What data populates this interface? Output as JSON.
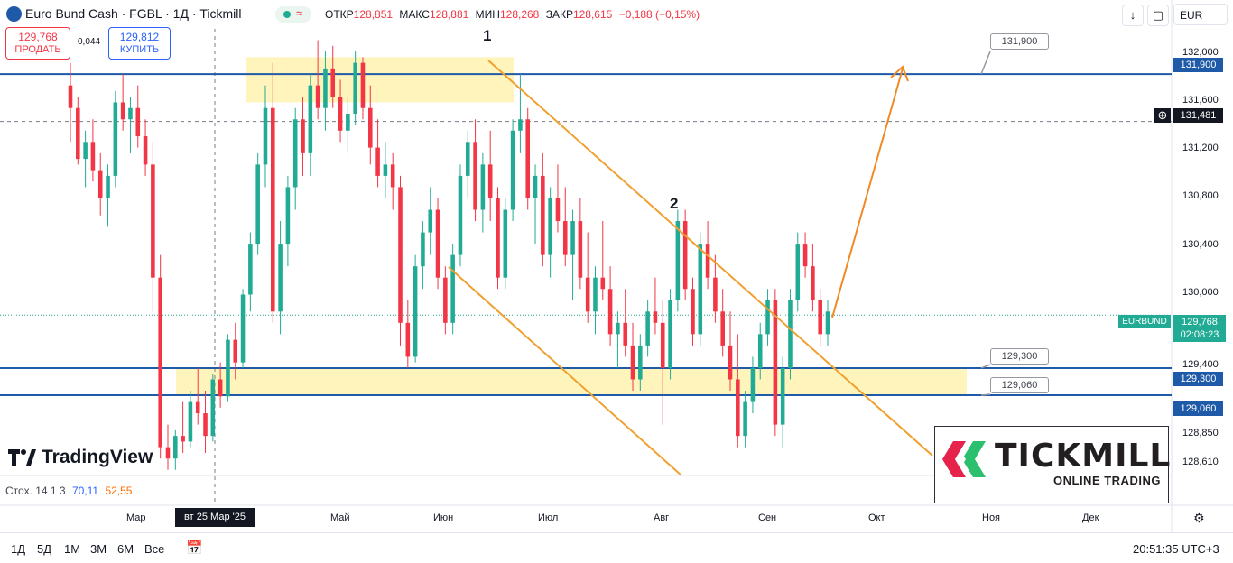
{
  "header": {
    "title": "Euro Bund Cash · FGBL · 1Д · Tickmill",
    "open_label": "ОТКР",
    "open_value": "128,851",
    "high_label": "МАКС",
    "high_value": "128,881",
    "low_label": "МИН",
    "low_value": "128,268",
    "close_label": "ЗАКР",
    "close_value": "128,615",
    "change": "−0,188 (−0,15%)",
    "live_glyph": "≈",
    "currency": "EUR",
    "colors": {
      "up": "#22ab94",
      "down": "#f23645",
      "accent": "#2962ff"
    }
  },
  "trade": {
    "sell_price": "129,768",
    "sell_label": "ПРОДАТЬ",
    "buy_price": "129,812",
    "buy_label": "КУПИТЬ",
    "spread": "0,044"
  },
  "toolbar_icons": [
    "arrow-down-icon",
    "screenshot-icon",
    "fullscreen-icon"
  ],
  "chart_data": {
    "type": "candlestick",
    "symbol": "EURBUND",
    "interval": "1Д",
    "ylim": [
      128.35,
      132.3
    ],
    "y_ticks": [
      "132,000",
      "131,600",
      "131,200",
      "130,800",
      "130,400",
      "130,000",
      "129,400",
      "128,850",
      "128,610"
    ],
    "x_ticks": [
      "Мар",
      "Май",
      "Июн",
      "Июл",
      "Авг",
      "Сен",
      "Окт",
      "Ноя",
      "Дек"
    ],
    "crosshair_date": "вт 25 Мар '25",
    "price_tags": {
      "r1": "131,900",
      "crosshair": "131,481",
      "current_symbol": "EURBUND",
      "current_price": "129,768",
      "countdown": "02:08:23",
      "s1": "129,300",
      "s2": "129,060"
    },
    "levels": [
      131.9,
      129.3,
      129.06
    ],
    "crosshair_price": 131.481,
    "current_price": 129.768,
    "callouts": [
      "131,900",
      "129,300",
      "129,060"
    ],
    "wave_labels": [
      "1",
      "2"
    ],
    "zones": [
      {
        "name": "resistance",
        "from": 131.65,
        "to": 132.05
      },
      {
        "name": "support",
        "from": 129.06,
        "to": 129.3
      }
    ],
    "candles": [
      [
        131.8,
        132.0,
        131.3,
        131.6
      ],
      [
        131.6,
        131.7,
        131.1,
        131.15
      ],
      [
        131.15,
        131.4,
        130.9,
        131.3
      ],
      [
        131.3,
        131.5,
        130.95,
        131.05
      ],
      [
        131.05,
        131.2,
        130.65,
        130.8
      ],
      [
        130.8,
        131.1,
        130.55,
        131.0
      ],
      [
        131.0,
        131.75,
        130.9,
        131.65
      ],
      [
        131.65,
        131.9,
        131.4,
        131.5
      ],
      [
        131.5,
        131.7,
        131.2,
        131.6
      ],
      [
        131.6,
        131.8,
        131.25,
        131.35
      ],
      [
        131.35,
        131.5,
        131.0,
        131.1
      ],
      [
        131.1,
        131.3,
        129.8,
        130.1
      ],
      [
        130.1,
        130.3,
        128.5,
        128.6
      ],
      [
        128.6,
        128.8,
        128.4,
        128.5
      ],
      [
        128.5,
        128.75,
        128.4,
        128.7
      ],
      [
        128.7,
        129.0,
        128.55,
        128.65
      ],
      [
        128.65,
        129.1,
        128.6,
        129.0
      ],
      [
        129.0,
        129.3,
        128.8,
        128.9
      ],
      [
        128.9,
        129.1,
        128.55,
        128.7
      ],
      [
        128.7,
        129.25,
        128.65,
        129.2
      ],
      [
        129.2,
        129.35,
        128.95,
        129.05
      ],
      [
        129.05,
        129.6,
        129.0,
        129.55
      ],
      [
        129.55,
        129.7,
        129.2,
        129.35
      ],
      [
        129.35,
        130.0,
        129.3,
        129.95
      ],
      [
        129.95,
        130.5,
        129.8,
        130.4
      ],
      [
        130.4,
        131.2,
        130.3,
        131.1
      ],
      [
        131.1,
        131.8,
        130.9,
        131.6
      ],
      [
        131.6,
        132.0,
        129.7,
        129.8
      ],
      [
        129.8,
        130.6,
        129.6,
        130.4
      ],
      [
        130.4,
        131.0,
        130.2,
        130.9
      ],
      [
        130.9,
        131.6,
        130.7,
        131.5
      ],
      [
        131.5,
        131.7,
        131.0,
        131.2
      ],
      [
        131.2,
        131.9,
        131.0,
        131.8
      ],
      [
        131.8,
        132.2,
        131.5,
        131.6
      ],
      [
        131.6,
        132.1,
        131.4,
        131.95
      ],
      [
        131.95,
        132.15,
        131.6,
        131.7
      ],
      [
        131.7,
        131.85,
        131.3,
        131.4
      ],
      [
        131.4,
        131.7,
        131.2,
        131.55
      ],
      [
        131.55,
        132.1,
        131.45,
        132.0
      ],
      [
        132.0,
        132.05,
        131.5,
        131.6
      ],
      [
        131.6,
        131.8,
        131.1,
        131.25
      ],
      [
        131.25,
        131.5,
        130.9,
        131.0
      ],
      [
        131.0,
        131.3,
        130.8,
        131.1
      ],
      [
        131.1,
        131.2,
        130.7,
        130.9
      ],
      [
        130.9,
        131.0,
        129.5,
        129.7
      ],
      [
        129.7,
        129.9,
        129.3,
        129.4
      ],
      [
        129.4,
        130.3,
        129.35,
        130.2
      ],
      [
        130.2,
        130.6,
        130.0,
        130.5
      ],
      [
        130.5,
        130.9,
        130.3,
        130.7
      ],
      [
        130.7,
        130.8,
        130.0,
        130.1
      ],
      [
        130.1,
        130.2,
        129.6,
        129.7
      ],
      [
        129.7,
        130.4,
        129.6,
        130.3
      ],
      [
        130.3,
        131.1,
        130.2,
        131.0
      ],
      [
        131.0,
        131.4,
        130.8,
        131.3
      ],
      [
        131.3,
        131.5,
        130.6,
        130.7
      ],
      [
        130.7,
        131.2,
        130.5,
        131.1
      ],
      [
        131.1,
        131.4,
        130.6,
        130.8
      ],
      [
        130.8,
        130.9,
        130.0,
        130.1
      ],
      [
        130.1,
        130.8,
        130.0,
        130.7
      ],
      [
        130.7,
        131.5,
        130.6,
        131.4
      ],
      [
        131.4,
        131.9,
        131.2,
        131.5
      ],
      [
        131.5,
        131.6,
        130.7,
        130.8
      ],
      [
        130.8,
        131.1,
        130.4,
        131.0
      ],
      [
        131.0,
        131.2,
        130.2,
        130.3
      ],
      [
        130.3,
        130.9,
        130.1,
        130.8
      ],
      [
        130.8,
        131.1,
        130.5,
        130.6
      ],
      [
        130.6,
        130.9,
        130.2,
        130.3
      ],
      [
        130.3,
        130.7,
        129.9,
        130.6
      ],
      [
        130.6,
        130.8,
        130.0,
        130.1
      ],
      [
        130.1,
        130.5,
        129.7,
        129.8
      ],
      [
        129.8,
        130.2,
        129.6,
        130.1
      ],
      [
        130.1,
        130.6,
        129.9,
        130.0
      ],
      [
        130.0,
        130.2,
        129.5,
        129.6
      ],
      [
        129.6,
        129.8,
        129.3,
        129.7
      ],
      [
        129.7,
        130.0,
        129.4,
        129.5
      ],
      [
        129.5,
        129.7,
        129.1,
        129.2
      ],
      [
        129.2,
        129.6,
        129.1,
        129.5
      ],
      [
        129.5,
        129.9,
        129.4,
        129.8
      ],
      [
        129.8,
        130.1,
        129.6,
        129.7
      ],
      [
        129.7,
        129.9,
        128.8,
        129.3
      ],
      [
        129.3,
        130.0,
        129.2,
        129.9
      ],
      [
        129.9,
        130.7,
        129.8,
        130.6
      ],
      [
        130.6,
        130.7,
        129.9,
        130.0
      ],
      [
        130.0,
        130.1,
        129.5,
        129.6
      ],
      [
        129.6,
        130.5,
        129.5,
        130.4
      ],
      [
        130.4,
        130.6,
        130.0,
        130.1
      ],
      [
        130.1,
        130.3,
        129.7,
        129.8
      ],
      [
        129.8,
        130.0,
        129.4,
        129.5
      ],
      [
        129.5,
        129.8,
        129.1,
        129.2
      ],
      [
        129.2,
        129.6,
        128.6,
        128.7
      ],
      [
        128.7,
        129.1,
        128.6,
        129.0
      ],
      [
        129.0,
        129.4,
        128.9,
        129.3
      ],
      [
        129.3,
        129.7,
        129.2,
        129.6
      ],
      [
        129.6,
        130.0,
        129.5,
        129.9
      ],
      [
        129.9,
        130.0,
        128.7,
        128.8
      ],
      [
        128.8,
        129.4,
        128.6,
        129.3
      ],
      [
        129.3,
        130.0,
        129.2,
        129.9
      ],
      [
        129.9,
        130.5,
        129.8,
        130.4
      ],
      [
        130.4,
        130.5,
        130.1,
        130.2
      ],
      [
        130.2,
        130.4,
        129.8,
        129.9
      ],
      [
        129.9,
        130.0,
        129.5,
        129.6
      ],
      [
        129.6,
        129.9,
        129.5,
        129.8
      ]
    ],
    "stoch": {
      "label": "Стох. 14 1 3",
      "k": "70,11",
      "d": "52,55"
    }
  },
  "branding": {
    "tv_text": "TradingView",
    "tickmill_name": "TICKMILL",
    "tickmill_tag": "ONLINE TRADING"
  },
  "bottom": {
    "timeframes": [
      "1Д",
      "5Д",
      "1М",
      "3М",
      "6М",
      "Все"
    ],
    "clock": "20:51:35 UTC+3"
  }
}
